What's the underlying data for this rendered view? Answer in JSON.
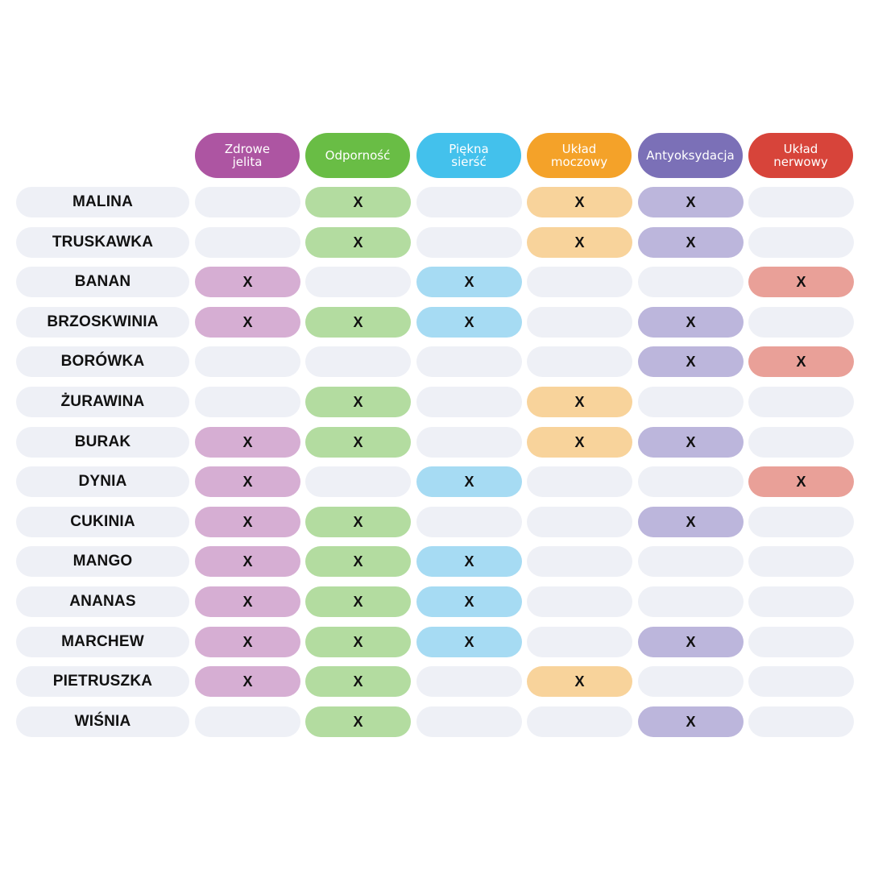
{
  "columns": [
    {
      "label": "Zdrowe\njelita",
      "color": "#ad55a2",
      "light": "#d6aed3"
    },
    {
      "label": "Odporność",
      "color": "#69bd45",
      "light": "#b3dca0"
    },
    {
      "label": "Piękna\nsierść",
      "color": "#43c1ec",
      "light": "#a6dbf3"
    },
    {
      "label": "Układ\nmoczowy",
      "color": "#f4a229",
      "light": "#f8d39b"
    },
    {
      "label": "Antyoksydacja",
      "color": "#7b70b7",
      "light": "#bcb6dc"
    },
    {
      "label": "Układ\nnerwowy",
      "color": "#d7443a",
      "light": "#e9a098"
    }
  ],
  "empty_color": "#eef0f6",
  "mark": "X",
  "rows": [
    {
      "name": "MALINA",
      "marks": [
        0,
        1,
        0,
        1,
        1,
        0
      ]
    },
    {
      "name": "TRUSKAWKA",
      "marks": [
        0,
        1,
        0,
        1,
        1,
        0
      ]
    },
    {
      "name": "BANAN",
      "marks": [
        1,
        0,
        1,
        0,
        0,
        1
      ]
    },
    {
      "name": "BRZOSKWINIA",
      "marks": [
        1,
        1,
        1,
        0,
        1,
        0
      ]
    },
    {
      "name": "BORÓWKA",
      "marks": [
        0,
        0,
        0,
        0,
        1,
        1
      ]
    },
    {
      "name": "ŻURAWINA",
      "marks": [
        0,
        1,
        0,
        1,
        0,
        0
      ]
    },
    {
      "name": "BURAK",
      "marks": [
        1,
        1,
        0,
        1,
        1,
        0
      ]
    },
    {
      "name": "DYNIA",
      "marks": [
        1,
        0,
        1,
        0,
        0,
        1
      ]
    },
    {
      "name": "CUKINIA",
      "marks": [
        1,
        1,
        0,
        0,
        1,
        0
      ]
    },
    {
      "name": "MANGO",
      "marks": [
        1,
        1,
        1,
        0,
        0,
        0
      ]
    },
    {
      "name": "ANANAS",
      "marks": [
        1,
        1,
        1,
        0,
        0,
        0
      ]
    },
    {
      "name": "MARCHEW",
      "marks": [
        1,
        1,
        1,
        0,
        1,
        0
      ]
    },
    {
      "name": "PIETRUSZKA",
      "marks": [
        1,
        1,
        0,
        1,
        0,
        0
      ]
    },
    {
      "name": "WIŚNIA",
      "marks": [
        0,
        1,
        0,
        0,
        1,
        0
      ]
    }
  ]
}
